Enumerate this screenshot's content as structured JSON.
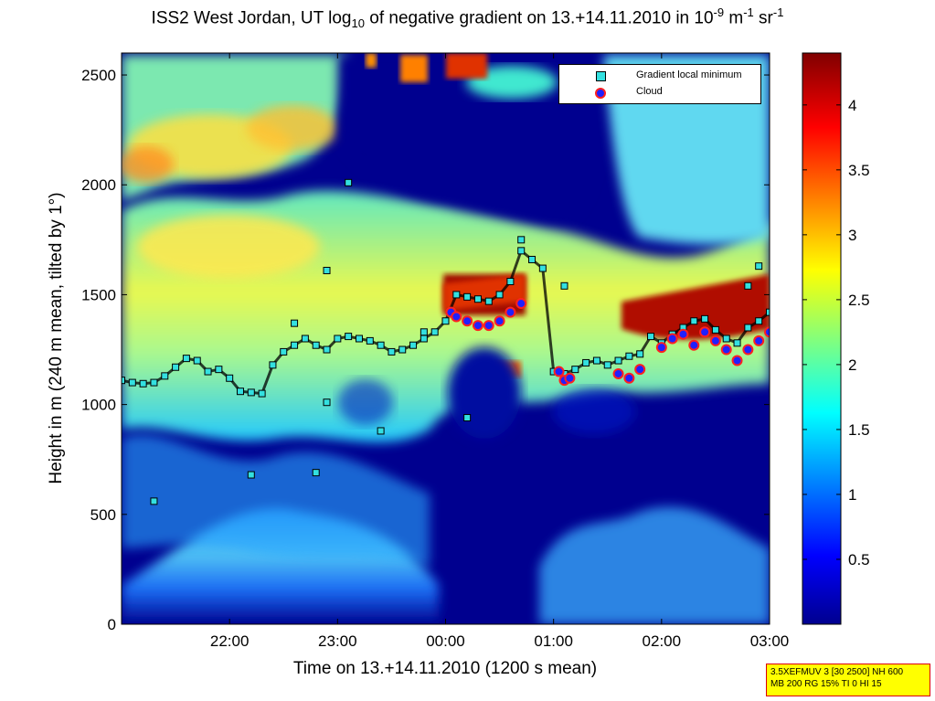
{
  "title": {
    "part1": "ISS2 West Jordan, UT log",
    "sub10": "10",
    "part2": " of negative gradient on 13.+14.11.2010 in 10",
    "sup_exp": "-9",
    "part3": " m",
    "sup_m": "-1",
    "part4": " sr",
    "sup_sr": "-1"
  },
  "legend": {
    "gradient_label": "Gradient local minimum",
    "cloud_label": "Cloud"
  },
  "info_box": {
    "line1": "3.5XEFMUV 3 [30 2500] NH 600",
    "line2": "MB 200 RG 15% TI 0 HI 15"
  },
  "colors": {
    "background_field": "#00008f",
    "gradient_marker": "#33e0e0",
    "cloud_marker_fill": "#2020ff",
    "cloud_marker_edge": "#ff2020",
    "info_box_bg": "#ffff00"
  },
  "chart_data": {
    "type": "heatmap",
    "colormap": "jet",
    "xlabel": "Time on 13.+14.11.2010 (1200 s mean)",
    "ylabel": "Height in m (240 m mean, tilted by 1°)",
    "x_ticks": [
      {
        "value": 22.0,
        "label": "22:00"
      },
      {
        "value": 23.0,
        "label": "23:00"
      },
      {
        "value": 24.0,
        "label": "00:00"
      },
      {
        "value": 25.0,
        "label": "01:00"
      },
      {
        "value": 26.0,
        "label": "02:00"
      },
      {
        "value": 27.0,
        "label": "03:00"
      }
    ],
    "xlim": [
      21.0,
      27.0
    ],
    "y_ticks": [
      0,
      500,
      1000,
      1500,
      2000,
      2500
    ],
    "ylim": [
      0,
      2600
    ],
    "colorbar": {
      "range": [
        0,
        4.4
      ],
      "ticks": [
        0.5,
        1,
        1.5,
        2,
        2.5,
        3,
        3.5,
        4
      ]
    },
    "gradient_local_minimum": [
      [
        21.0,
        1110
      ],
      [
        21.1,
        1100
      ],
      [
        21.2,
        1095
      ],
      [
        21.3,
        1100
      ],
      [
        21.4,
        1130
      ],
      [
        21.5,
        1170
      ],
      [
        21.6,
        1210
      ],
      [
        21.7,
        1200
      ],
      [
        21.8,
        1150
      ],
      [
        21.9,
        1160
      ],
      [
        22.0,
        1120
      ],
      [
        22.1,
        1060
      ],
      [
        22.2,
        1055
      ],
      [
        22.3,
        1050
      ],
      [
        22.4,
        1180
      ],
      [
        22.5,
        1240
      ],
      [
        22.6,
        1270
      ],
      [
        22.7,
        1300
      ],
      [
        22.8,
        1270
      ],
      [
        22.9,
        1250
      ],
      [
        23.0,
        1300
      ],
      [
        23.1,
        1310
      ],
      [
        23.2,
        1300
      ],
      [
        23.3,
        1290
      ],
      [
        23.4,
        1270
      ],
      [
        23.5,
        1240
      ],
      [
        23.6,
        1250
      ],
      [
        23.7,
        1270
      ],
      [
        23.8,
        1300
      ],
      [
        23.9,
        1330
      ],
      [
        24.0,
        1380
      ],
      [
        24.1,
        1500
      ],
      [
        24.2,
        1490
      ],
      [
        24.3,
        1480
      ],
      [
        24.4,
        1470
      ],
      [
        24.5,
        1500
      ],
      [
        24.6,
        1560
      ],
      [
        24.7,
        1700
      ],
      [
        24.8,
        1660
      ],
      [
        24.9,
        1620
      ],
      [
        25.0,
        1150
      ],
      [
        25.1,
        1140
      ],
      [
        25.2,
        1160
      ],
      [
        25.3,
        1190
      ],
      [
        25.4,
        1200
      ],
      [
        25.5,
        1180
      ],
      [
        25.6,
        1200
      ],
      [
        25.7,
        1220
      ],
      [
        25.8,
        1230
      ],
      [
        25.9,
        1310
      ],
      [
        26.0,
        1280
      ],
      [
        26.1,
        1320
      ],
      [
        26.2,
        1350
      ],
      [
        26.3,
        1380
      ],
      [
        26.4,
        1390
      ],
      [
        26.5,
        1340
      ],
      [
        26.6,
        1300
      ],
      [
        26.7,
        1280
      ],
      [
        26.8,
        1350
      ],
      [
        26.9,
        1380
      ],
      [
        27.0,
        1420
      ],
      [
        21.3,
        560
      ],
      [
        22.2,
        680
      ],
      [
        22.8,
        690
      ],
      [
        22.9,
        1010
      ],
      [
        22.9,
        1610
      ],
      [
        23.1,
        2010
      ],
      [
        23.4,
        880
      ],
      [
        24.2,
        940
      ],
      [
        24.7,
        1750
      ],
      [
        25.1,
        1540
      ],
      [
        23.8,
        1330
      ],
      [
        22.6,
        1370
      ],
      [
        26.9,
        1630
      ],
      [
        26.8,
        1540
      ]
    ],
    "cloud": [
      [
        24.05,
        1420
      ],
      [
        24.1,
        1400
      ],
      [
        24.2,
        1380
      ],
      [
        24.3,
        1360
      ],
      [
        24.4,
        1360
      ],
      [
        24.5,
        1380
      ],
      [
        24.6,
        1420
      ],
      [
        24.7,
        1460
      ],
      [
        25.05,
        1150
      ],
      [
        25.1,
        1110
      ],
      [
        25.15,
        1120
      ],
      [
        25.6,
        1140
      ],
      [
        25.7,
        1120
      ],
      [
        25.8,
        1160
      ],
      [
        26.0,
        1260
      ],
      [
        26.1,
        1300
      ],
      [
        26.2,
        1320
      ],
      [
        26.3,
        1270
      ],
      [
        26.4,
        1330
      ],
      [
        26.5,
        1290
      ],
      [
        26.6,
        1250
      ],
      [
        26.7,
        1200
      ],
      [
        26.8,
        1250
      ],
      [
        26.9,
        1290
      ],
      [
        27.0,
        1330
      ]
    ]
  }
}
